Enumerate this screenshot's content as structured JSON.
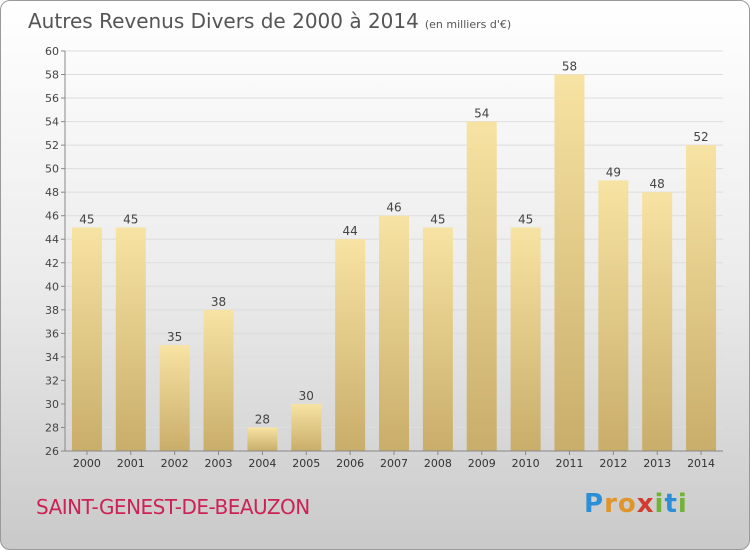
{
  "chart_data": {
    "type": "bar",
    "title": "Autres Revenus Divers de 2000 à 2014",
    "subtitle": "(en milliers d'€)",
    "categories": [
      "2000",
      "2001",
      "2002",
      "2003",
      "2004",
      "2005",
      "2006",
      "2007",
      "2008",
      "2009",
      "2010",
      "2011",
      "2012",
      "2013",
      "2014"
    ],
    "values": [
      45,
      45,
      35,
      38,
      28,
      30,
      44,
      46,
      45,
      54,
      45,
      58,
      49,
      48,
      52
    ],
    "ylim": [
      26,
      60
    ],
    "yticks": [
      26,
      28,
      30,
      32,
      34,
      36,
      38,
      40,
      42,
      44,
      46,
      48,
      50,
      52,
      54,
      56,
      58,
      60
    ],
    "grid": true,
    "colors": {
      "bar_light": "#f7e3a3",
      "bar_dark": "#c9ad6a",
      "grid": "#dddddd",
      "axis": "#888888"
    }
  },
  "footer": {
    "commune": "SAINT-GENEST-DE-BEAUZON",
    "logo": [
      "P",
      "r",
      "o",
      "x",
      "i",
      "t",
      "i"
    ],
    "logo_colors": [
      "#2a8fd6",
      "#e0952a",
      "#e0952a",
      "#d13c2f",
      "#72b236",
      "#2a8fd6",
      "#72b236"
    ]
  }
}
